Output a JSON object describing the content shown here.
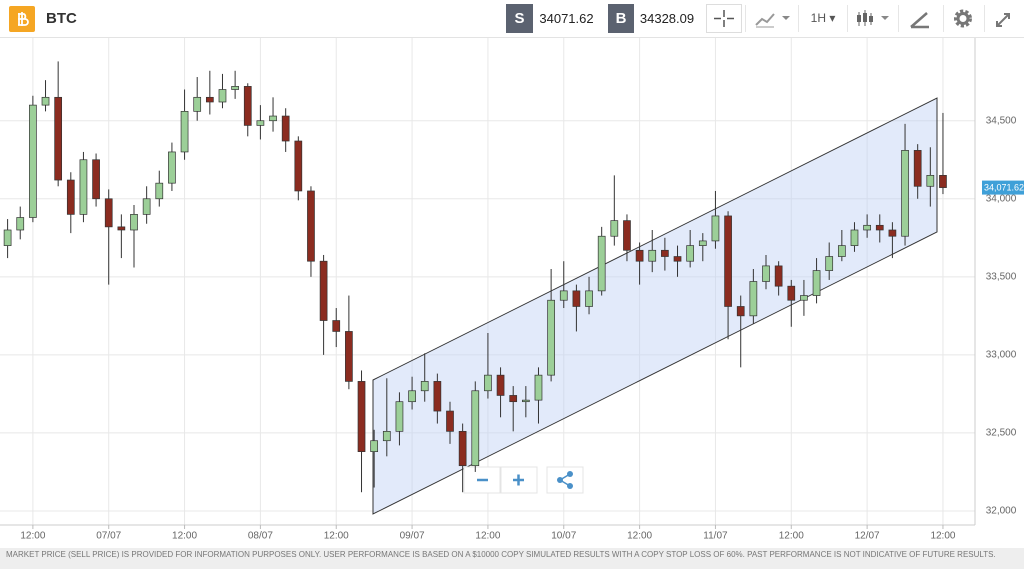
{
  "toolbar": {
    "symbol": "BTC",
    "sell_label": "S",
    "sell_price": "34071.62",
    "buy_label": "B",
    "buy_price": "34328.09",
    "timeframe": "1H"
  },
  "chart_data": {
    "type": "candlestick",
    "categories": [
      null,
      null,
      "12:00",
      null,
      null,
      null,
      null,
      null,
      "07/07",
      null,
      null,
      null,
      null,
      null,
      "12:00",
      null,
      null,
      null,
      null,
      null,
      "08/07",
      null,
      null,
      null,
      null,
      null,
      "12:00",
      null,
      null,
      null,
      null,
      null,
      "09/07",
      null,
      null,
      null,
      null,
      null,
      "12:00",
      null,
      null,
      null,
      null,
      null,
      "10/07",
      null,
      null,
      null,
      null,
      null,
      "12:00",
      null,
      null,
      null,
      null,
      null,
      "11/07",
      null,
      null,
      null,
      null,
      null,
      "12:00",
      null,
      null,
      null,
      null,
      null,
      "12/07",
      null,
      null,
      null,
      null,
      null,
      "12:00"
    ],
    "open": [
      33700,
      33800,
      33880,
      34600,
      34650,
      34120,
      33900,
      34250,
      34000,
      33820,
      33800,
      33900,
      34000,
      34100,
      34300,
      34560,
      34650,
      34620,
      34700,
      34720,
      34470,
      34500,
      34530,
      34370,
      34050,
      33600,
      33220,
      33150,
      32830,
      32380,
      32450,
      32510,
      32700,
      32770,
      32830,
      32640,
      32510,
      32290,
      32770,
      32870,
      32740,
      32700,
      32710,
      32870,
      33350,
      33410,
      33310,
      33410,
      33760,
      33860,
      33670,
      33600,
      33670,
      33630,
      33600,
      33700,
      33730,
      33890,
      33310,
      33250,
      33470,
      33570,
      33440,
      33350,
      33380,
      33540,
      33630,
      33700,
      33800,
      33830,
      33800,
      33760,
      34310,
      34080,
      34150
    ],
    "high": [
      33870,
      33950,
      34660,
      34760,
      34880,
      34170,
      34300,
      34290,
      34060,
      33900,
      33960,
      34080,
      34180,
      34360,
      34700,
      34780,
      34820,
      34800,
      34820,
      34740,
      34600,
      34650,
      34580,
      34400,
      34080,
      33640,
      33300,
      33380,
      32900,
      32520,
      32850,
      32760,
      32860,
      33010,
      32880,
      32700,
      32560,
      32830,
      33140,
      32920,
      32800,
      32800,
      32920,
      33550,
      33600,
      33450,
      33500,
      33820,
      34150,
      33900,
      33720,
      33800,
      33750,
      33700,
      33800,
      33780,
      34050,
      33920,
      33380,
      33550,
      33640,
      33600,
      33480,
      33480,
      33620,
      33720,
      33800,
      33850,
      33900,
      33900,
      33850,
      34480,
      34350,
      34330,
      34550
    ],
    "low": [
      33620,
      33740,
      33850,
      34560,
      34080,
      33780,
      33850,
      33950,
      33450,
      33620,
      33560,
      33840,
      33950,
      34050,
      34250,
      34500,
      34540,
      34580,
      34640,
      34400,
      34380,
      34430,
      34300,
      33990,
      33500,
      33000,
      33050,
      32780,
      32120,
      32150,
      32350,
      32420,
      32650,
      32700,
      32560,
      32430,
      32120,
      32250,
      32720,
      32600,
      32510,
      32600,
      32560,
      32830,
      33300,
      33150,
      33260,
      33380,
      33700,
      33600,
      33450,
      33530,
      33540,
      33500,
      33560,
      33600,
      33680,
      33100,
      32920,
      33200,
      33420,
      33380,
      33180,
      33250,
      33330,
      33480,
      33600,
      33660,
      33750,
      33720,
      33620,
      33700,
      34000,
      33950,
      34030
    ],
    "close": [
      33800,
      33880,
      34600,
      34650,
      34120,
      33900,
      34250,
      34000,
      33820,
      33800,
      33900,
      34000,
      34100,
      34300,
      34560,
      34650,
      34620,
      34700,
      34720,
      34470,
      34500,
      34530,
      34370,
      34050,
      33600,
      33220,
      33150,
      32830,
      32380,
      32450,
      32510,
      32700,
      32770,
      32830,
      32640,
      32510,
      32290,
      32770,
      32870,
      32740,
      32700,
      32710,
      32870,
      33350,
      33410,
      33310,
      33410,
      33760,
      33860,
      33670,
      33600,
      33670,
      33630,
      33600,
      33700,
      33730,
      33890,
      33310,
      33250,
      33470,
      33570,
      33440,
      33350,
      33380,
      33540,
      33630,
      33700,
      33800,
      33830,
      33800,
      33760,
      34310,
      34080,
      34150,
      34071.62
    ],
    "up_color": "#9ccf98",
    "down_color": "#8b2c20",
    "ylim": [
      31910,
      35030
    ],
    "yticks": [
      {
        "value": 32000,
        "label": "32,000"
      },
      {
        "value": 32500,
        "label": "32,500"
      },
      {
        "value": 33000,
        "label": "33,000"
      },
      {
        "value": 33500,
        "label": "33,500"
      },
      {
        "value": 34000,
        "label": "34,000"
      },
      {
        "value": 34500,
        "label": "34,500"
      }
    ],
    "grid": true,
    "price_marker": 34071.62,
    "price_marker_label": "34,071.62"
  },
  "disclaimer": "MARKET PRICE (SELL PRICE) IS PROVIDED FOR INFORMATION PURPOSES ONLY. USER PERFORMANCE IS BASED ON A $10000 COPY SIMULATED RESULTS WITH A COPY STOP LOSS OF 60%. PAST PERFORMANCE IS NOT INDICATIVE OF FUTURE RESULTS."
}
